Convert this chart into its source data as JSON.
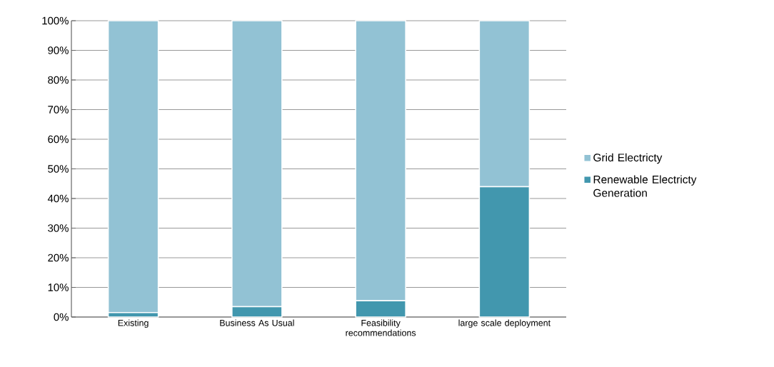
{
  "chart_data": {
    "type": "bar",
    "stacked": true,
    "categories": [
      "Existing",
      "Business As Usual",
      "Feasibility recommendations",
      "large scale deployment"
    ],
    "series": [
      {
        "name": "Renewable Electricty Generation",
        "color": "#4297ae",
        "values": [
          1.5,
          3.5,
          5.5,
          44
        ]
      },
      {
        "name": "Grid Electricty",
        "color": "#92c2d4",
        "values": [
          98.5,
          96.5,
          94.5,
          56
        ]
      }
    ],
    "ylim": [
      0,
      100
    ],
    "yticks": [
      {
        "value": 0,
        "label": "0%"
      },
      {
        "value": 10,
        "label": "10%"
      },
      {
        "value": 20,
        "label": "20%"
      },
      {
        "value": 30,
        "label": "30%"
      },
      {
        "value": 40,
        "label": "40%"
      },
      {
        "value": 50,
        "label": "50%"
      },
      {
        "value": 60,
        "label": "60%"
      },
      {
        "value": 70,
        "label": "70%"
      },
      {
        "value": 80,
        "label": "80%"
      },
      {
        "value": 90,
        "label": "90%"
      },
      {
        "value": 100,
        "label": "100%"
      }
    ],
    "grid": "y",
    "legend": "right"
  }
}
